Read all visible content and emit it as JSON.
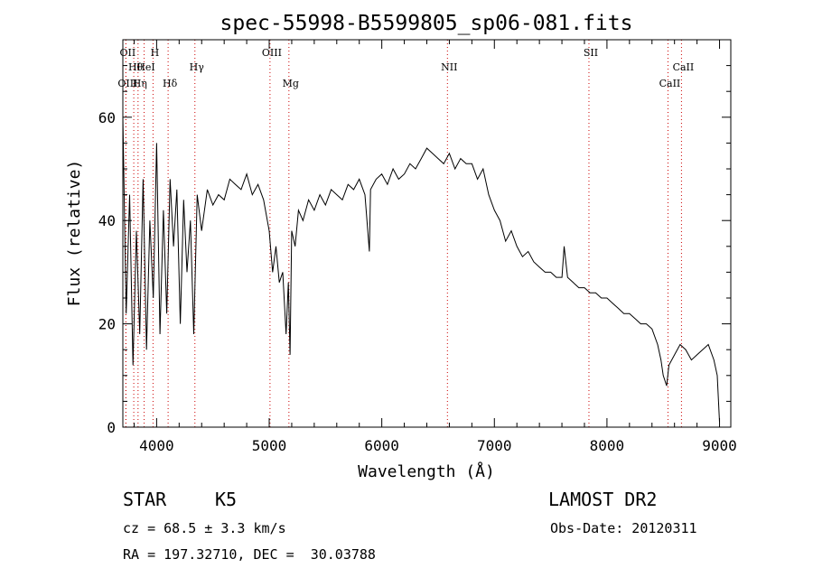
{
  "chart_data": {
    "type": "line",
    "title": "spec-55998-B5599805_sp06-081.fits",
    "xlabel": "Wavelength (Å)",
    "ylabel": "Flux (relative)",
    "xlim": [
      3700,
      9100
    ],
    "ylim": [
      0,
      75
    ],
    "x_ticks": [
      4000,
      5000,
      6000,
      7000,
      8000,
      9000
    ],
    "y_ticks": [
      0,
      20,
      40,
      60
    ],
    "x_tick_labels": [
      "4000",
      "5000",
      "6000",
      "7000",
      "8000",
      "9000"
    ],
    "y_tick_labels": [
      "0",
      "20",
      "40",
      "60"
    ],
    "grid": false,
    "line_color": "#000000",
    "marker_color": "#cc0000",
    "series": [
      {
        "x": [
          3700,
          3730,
          3760,
          3790,
          3820,
          3850,
          3880,
          3910,
          3940,
          3970,
          4000,
          4030,
          4060,
          4090,
          4120,
          4150,
          4180,
          4210,
          4240,
          4270,
          4300,
          4330,
          4360,
          4400,
          4450,
          4500,
          4550,
          4600,
          4650,
          4700,
          4750,
          4800,
          4850,
          4900,
          4950,
          5000,
          5030,
          5060,
          5090,
          5120,
          5150,
          5170,
          5185,
          5200,
          5230,
          5260,
          5300,
          5350,
          5400,
          5450,
          5500,
          5550,
          5600,
          5650,
          5700,
          5750,
          5800,
          5850,
          5890,
          5900,
          5950,
          6000,
          6050,
          6100,
          6150,
          6200,
          6250,
          6300,
          6350,
          6400,
          6450,
          6500,
          6550,
          6600,
          6650,
          6700,
          6750,
          6800,
          6850,
          6900,
          6950,
          7000,
          7050,
          7100,
          7150,
          7200,
          7250,
          7300,
          7350,
          7400,
          7450,
          7500,
          7550,
          7600,
          7620,
          7650,
          7700,
          7750,
          7800,
          7850,
          7900,
          7950,
          8000,
          8050,
          8100,
          8150,
          8200,
          8250,
          8300,
          8350,
          8400,
          8450,
          8480,
          8500,
          8530,
          8550,
          8600,
          8650,
          8700,
          8750,
          8800,
          8850,
          8900,
          8950,
          8980,
          9000
        ],
        "y": [
          60,
          22,
          45,
          12,
          38,
          18,
          48,
          15,
          40,
          25,
          55,
          18,
          42,
          22,
          48,
          35,
          46,
          20,
          44,
          30,
          40,
          18,
          45,
          38,
          46,
          43,
          45,
          44,
          48,
          47,
          46,
          49,
          45,
          47,
          44,
          38,
          30,
          35,
          28,
          30,
          18,
          28,
          14,
          38,
          35,
          42,
          40,
          44,
          42,
          45,
          43,
          46,
          45,
          44,
          47,
          46,
          48,
          45,
          34,
          46,
          48,
          49,
          47,
          50,
          48,
          49,
          51,
          50,
          52,
          54,
          53,
          52,
          51,
          53,
          50,
          52,
          51,
          51,
          48,
          50,
          45,
          42,
          40,
          36,
          38,
          35,
          33,
          34,
          32,
          31,
          30,
          30,
          29,
          29,
          35,
          29,
          28,
          27,
          27,
          26,
          26,
          25,
          25,
          24,
          23,
          22,
          22,
          21,
          20,
          20,
          19,
          16,
          13,
          10,
          8,
          12,
          14,
          16,
          15,
          13,
          14,
          15,
          16,
          13,
          10,
          1
        ]
      }
    ],
    "line_markers": [
      {
        "label": "Hθ",
        "x": 3797
      },
      {
        "label": "OII",
        "x": 3727
      },
      {
        "label": "OIII",
        "x": 3727
      },
      {
        "label": "H",
        "x": 3968
      },
      {
        "label": "HeI",
        "x": 3889
      },
      {
        "label": "Hη",
        "x": 3835
      },
      {
        "label": "Hδ",
        "x": 4102
      },
      {
        "label": "Hγ",
        "x": 4340
      },
      {
        "label": "OIII",
        "x": 5007
      },
      {
        "label": "Mg",
        "x": 5175
      },
      {
        "label": "NII",
        "x": 6583
      },
      {
        "label": "SII",
        "x": 7840
      },
      {
        "label": "CaII",
        "x": 8542
      },
      {
        "label": "CaII",
        "x": 8662
      }
    ]
  },
  "info": {
    "class": "STAR",
    "subclass": "K5",
    "survey": "LAMOST DR2",
    "cz": "cz = 68.5 ± 3.3 km/s",
    "obs_date": "Obs-Date: 20120311",
    "coords": "RA = 197.32710, DEC =  30.03788"
  }
}
